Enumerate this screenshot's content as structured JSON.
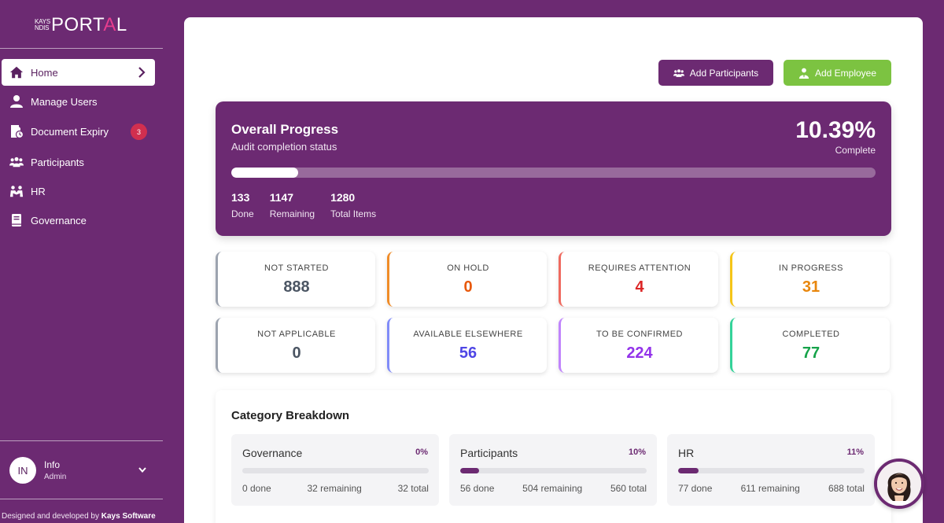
{
  "brand": {
    "small_top": "KAYS",
    "small_bottom": "NDIS",
    "big_pre": "PORT",
    "big_accent": "A",
    "big_post": "L"
  },
  "sidebar": {
    "items": [
      {
        "label": "Home",
        "icon": "home-icon",
        "active": true
      },
      {
        "label": "Manage Users",
        "icon": "user-icon"
      },
      {
        "label": "Document Expiry",
        "icon": "document-clock-icon",
        "badge": "3"
      },
      {
        "label": "Participants",
        "icon": "group-icon"
      },
      {
        "label": "HR",
        "icon": "people-hands-icon"
      },
      {
        "label": "Governance",
        "icon": "book-icon"
      }
    ],
    "user": {
      "initials": "IN",
      "name": "Info",
      "role": "Admin"
    },
    "credit_prefix": "Designed and developed by ",
    "credit_company": "Kays Software"
  },
  "actions": {
    "add_participants": "Add Participants",
    "add_employee": "Add Employee"
  },
  "overall": {
    "title": "Overall Progress",
    "subtitle": "Audit completion status",
    "percent": "10.39%",
    "percent_label": "Complete",
    "progress_fraction": 0.1039,
    "stats": [
      {
        "value": "133",
        "label": "Done"
      },
      {
        "value": "1147",
        "label": "Remaining"
      },
      {
        "value": "1280",
        "label": "Total Items"
      }
    ]
  },
  "statuses": [
    {
      "label": "NOT STARTED",
      "value": "888",
      "color": "#4b5563",
      "border": "#9ca3af"
    },
    {
      "label": "ON HOLD",
      "value": "0",
      "color": "#e8590c",
      "border": "#f08c28"
    },
    {
      "label": "REQUIRES ATTENTION",
      "value": "4",
      "color": "#dc2626",
      "border": "#ef6a5f"
    },
    {
      "label": "IN PROGRESS",
      "value": "31",
      "color": "#e8860c",
      "border": "#f5c518"
    },
    {
      "label": "NOT APPLICABLE",
      "value": "0",
      "color": "#4b5563",
      "border": "#9ca3af"
    },
    {
      "label": "AVAILABLE ELSEWHERE",
      "value": "56",
      "color": "#4f46e5",
      "border": "#818cf8"
    },
    {
      "label": "TO BE CONFIRMED",
      "value": "224",
      "color": "#9333ea",
      "border": "#c084fc"
    },
    {
      "label": "COMPLETED",
      "value": "77",
      "color": "#16a34a",
      "border": "#34d399"
    }
  ],
  "categories": {
    "title": "Category Breakdown",
    "items": [
      {
        "name": "Governance",
        "percent": "0%",
        "fraction": 0.0,
        "done": "0 done",
        "remaining": "32 remaining",
        "total": "32 total"
      },
      {
        "name": "Participants",
        "percent": "10%",
        "fraction": 0.1,
        "done": "56 done",
        "remaining": "504 remaining",
        "total": "560 total"
      },
      {
        "name": "HR",
        "percent": "11%",
        "fraction": 0.11,
        "done": "77 done",
        "remaining": "611 remaining",
        "total": "688 total"
      }
    ]
  },
  "colors": {
    "brand": "#6c2a72",
    "accent_green": "#7cc341",
    "badge_red": "#d12f4f"
  }
}
